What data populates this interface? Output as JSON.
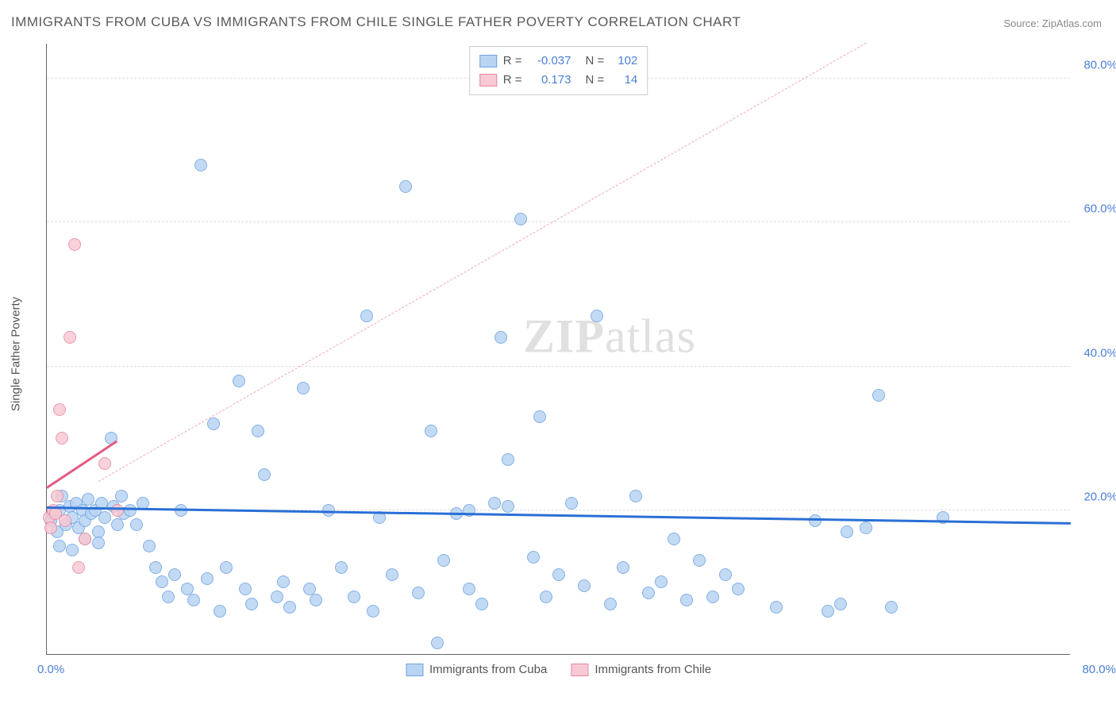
{
  "title": "IMMIGRANTS FROM CUBA VS IMMIGRANTS FROM CHILE SINGLE FATHER POVERTY CORRELATION CHART",
  "source_label": "Source: ZipAtlas.com",
  "ylabel": "Single Father Poverty",
  "watermark": "ZIPatlas",
  "chart": {
    "type": "scatter",
    "xlim": [
      0,
      80
    ],
    "ylim": [
      0,
      85
    ],
    "grid_color": "#dddddd",
    "background_color": "#ffffff",
    "y_ticks": [
      20,
      40,
      60,
      80
    ],
    "y_tick_labels": [
      "20.0%",
      "40.0%",
      "60.0%",
      "80.0%"
    ],
    "y_tick_color": "#4a7fd6",
    "x_tick_left": "0.0%",
    "x_tick_right": "80.0%",
    "x_tick_color": "#4a7fd6",
    "marker_radius": 8,
    "marker_border_width": 1.2,
    "series": [
      {
        "name": "Immigrants from Cuba",
        "fill": "#b9d4f3",
        "stroke": "#6fa3e0",
        "r_value": "-0.037",
        "n_value": "102",
        "trend": {
          "x1": 0,
          "y1": 20.2,
          "x2": 80,
          "y2": 18.0,
          "color": "#2a6fd6",
          "width": 3,
          "dash": false
        },
        "points": [
          [
            0.3,
            18.5
          ],
          [
            0.5,
            19.5
          ],
          [
            0.8,
            17.0
          ],
          [
            1.0,
            20.0
          ],
          [
            1.2,
            22.0
          ],
          [
            1.5,
            18.0
          ],
          [
            1.8,
            20.5
          ],
          [
            2.0,
            19.0
          ],
          [
            2.3,
            21.0
          ],
          [
            2.5,
            17.5
          ],
          [
            2.8,
            20.0
          ],
          [
            3.0,
            18.5
          ],
          [
            3.2,
            21.5
          ],
          [
            3.5,
            19.5
          ],
          [
            3.8,
            20.0
          ],
          [
            4.0,
            17.0
          ],
          [
            4.3,
            21.0
          ],
          [
            4.5,
            19.0
          ],
          [
            5.0,
            30.0
          ],
          [
            5.2,
            20.5
          ],
          [
            5.5,
            18.0
          ],
          [
            5.8,
            22.0
          ],
          [
            6.0,
            19.5
          ],
          [
            6.5,
            20.0
          ],
          [
            7.0,
            18.0
          ],
          [
            7.5,
            21.0
          ],
          [
            8.0,
            15.0
          ],
          [
            8.5,
            12.0
          ],
          [
            9.0,
            10.0
          ],
          [
            9.5,
            8.0
          ],
          [
            10.0,
            11.0
          ],
          [
            10.5,
            20.0
          ],
          [
            11.0,
            9.0
          ],
          [
            11.5,
            7.5
          ],
          [
            12.0,
            68.0
          ],
          [
            12.5,
            10.5
          ],
          [
            13.0,
            32.0
          ],
          [
            13.5,
            6.0
          ],
          [
            14.0,
            12.0
          ],
          [
            15.0,
            38.0
          ],
          [
            15.5,
            9.0
          ],
          [
            16.0,
            7.0
          ],
          [
            16.5,
            31.0
          ],
          [
            17.0,
            25.0
          ],
          [
            18.0,
            8.0
          ],
          [
            18.5,
            10.0
          ],
          [
            19.0,
            6.5
          ],
          [
            20.0,
            37.0
          ],
          [
            20.5,
            9.0
          ],
          [
            21.0,
            7.5
          ],
          [
            22.0,
            20.0
          ],
          [
            23.0,
            12.0
          ],
          [
            24.0,
            8.0
          ],
          [
            25.0,
            47.0
          ],
          [
            25.5,
            6.0
          ],
          [
            26.0,
            19.0
          ],
          [
            27.0,
            11.0
          ],
          [
            28.0,
            65.0
          ],
          [
            29.0,
            8.5
          ],
          [
            30.0,
            31.0
          ],
          [
            30.5,
            1.5
          ],
          [
            31.0,
            13.0
          ],
          [
            32.0,
            19.5
          ],
          [
            33.0,
            9.0
          ],
          [
            34.0,
            7.0
          ],
          [
            35.0,
            21.0
          ],
          [
            35.5,
            44.0
          ],
          [
            36.0,
            27.0
          ],
          [
            37.0,
            60.5
          ],
          [
            38.0,
            13.5
          ],
          [
            38.5,
            33.0
          ],
          [
            39.0,
            8.0
          ],
          [
            40.0,
            11.0
          ],
          [
            41.0,
            21.0
          ],
          [
            42.0,
            9.5
          ],
          [
            43.0,
            47.0
          ],
          [
            44.0,
            7.0
          ],
          [
            45.0,
            12.0
          ],
          [
            46.0,
            22.0
          ],
          [
            47.0,
            8.5
          ],
          [
            48.0,
            10.0
          ],
          [
            49.0,
            16.0
          ],
          [
            50.0,
            7.5
          ],
          [
            51.0,
            13.0
          ],
          [
            52.0,
            8.0
          ],
          [
            53.0,
            11.0
          ],
          [
            54.0,
            9.0
          ],
          [
            57.0,
            6.5
          ],
          [
            60.0,
            18.5
          ],
          [
            61.0,
            6.0
          ],
          [
            62.0,
            7.0
          ],
          [
            62.5,
            17.0
          ],
          [
            64.0,
            17.5
          ],
          [
            65.0,
            36.0
          ],
          [
            66.0,
            6.5
          ],
          [
            70.0,
            19.0
          ],
          [
            1.0,
            15.0
          ],
          [
            2.0,
            14.5
          ],
          [
            3.0,
            16.0
          ],
          [
            4.0,
            15.5
          ],
          [
            33.0,
            20.0
          ],
          [
            36.0,
            20.5
          ]
        ]
      },
      {
        "name": "Immigrants from Chile",
        "fill": "#f7c9d4",
        "stroke": "#e688a0",
        "r_value": "0.173",
        "n_value": "14",
        "trend": {
          "x1": 0,
          "y1": 23.0,
          "x2": 5.5,
          "y2": 29.5,
          "color": "#e35b82",
          "width": 3,
          "dash": false
        },
        "diagonal": {
          "x1": 4,
          "y1": 24,
          "x2": 64,
          "y2": 85,
          "color": "#f0a8b8",
          "width": 1.5,
          "dash": true
        },
        "points": [
          [
            0.2,
            19.0
          ],
          [
            0.3,
            17.5
          ],
          [
            0.5,
            20.0
          ],
          [
            0.7,
            19.5
          ],
          [
            0.8,
            22.0
          ],
          [
            1.0,
            34.0
          ],
          [
            1.2,
            30.0
          ],
          [
            1.4,
            18.5
          ],
          [
            1.8,
            44.0
          ],
          [
            2.2,
            57.0
          ],
          [
            2.5,
            12.0
          ],
          [
            3.0,
            16.0
          ],
          [
            4.5,
            26.5
          ],
          [
            5.5,
            20.0
          ]
        ]
      }
    ],
    "legend": {
      "r_label": "R =",
      "n_label": "N =",
      "value_color": "#4a7fd6"
    },
    "bottom_legend_items": [
      "Immigrants from Cuba",
      "Immigrants from Chile"
    ]
  }
}
